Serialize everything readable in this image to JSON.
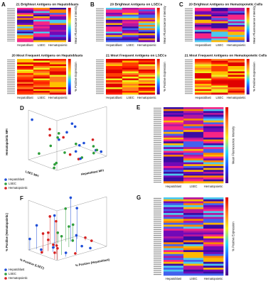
{
  "panels": [
    {
      "letter": "A",
      "title": "21 Brightest Antigens on Hepatoblasts",
      "x_labels": [
        "Hepatoblast",
        "LSEC",
        "Hematopoietic"
      ],
      "colorbar_label": "Mean Fluorescence Intensity"
    },
    {
      "letter": "B",
      "title": "20 Brightest Antigens on LSECs",
      "x_labels": [
        "Hepatoblast",
        "LSEC",
        "Hematopoietic"
      ],
      "colorbar_label": "Mean Fluorescence Intensity"
    },
    {
      "letter": "C",
      "title": "20 Brightest Antigens on Hematopoietic Cells",
      "x_labels": [
        "Hepatoblast",
        "LSEC",
        "Hematopoietic"
      ],
      "colorbar_label": "Mean Fluorescence Intensity"
    },
    {
      "title": "20 Most Frequent Antigens on Hepatoblasts",
      "x_labels": [
        "Hepatoblast",
        "LSEC",
        "Hematopoietic"
      ],
      "colorbar_label": "% Positive Expression"
    },
    {
      "title": "21 Most Frequent Antigens on LSECs",
      "x_labels": [
        "Hepatoblast",
        "LSEC",
        "Hematopoietic"
      ],
      "colorbar_label": "% Positive Expression"
    },
    {
      "title": "21 Most Frequent Antigens on Hematopoietic Cells",
      "x_labels": [
        "Hepatoblast",
        "LSEC",
        "Hematopoietic"
      ],
      "colorbar_label": "% Positive Expression"
    },
    {
      "letter": "E",
      "x_labels": [
        "Hepatoblast",
        "LSEC",
        "Hematopoietic"
      ],
      "colorbar_label": "Mean Fluorescence Intensity"
    },
    {
      "letter": "G",
      "x_labels": [
        "Hepatoblast",
        "LSEC",
        "Hematopoietic"
      ],
      "colorbar_label": "% Positive Expression"
    }
  ],
  "scatter_panels": [
    {
      "letter": "D",
      "axis_labels": [
        "Hematopoietic MFI",
        "LSEC MFI",
        "Hepatoblast MFI"
      ],
      "legend": [
        "Hepatoblast",
        "LSEC",
        "Hematopoietic"
      ]
    },
    {
      "letter": "F",
      "axis_labels": [
        "% Positive (Hematopoietic)",
        "% Positive (LSEC)",
        "% Positive (Hepatoblast)"
      ],
      "legend": [
        "Hepatoblast",
        "LSEC",
        "Hematopoietic"
      ]
    }
  ]
}
